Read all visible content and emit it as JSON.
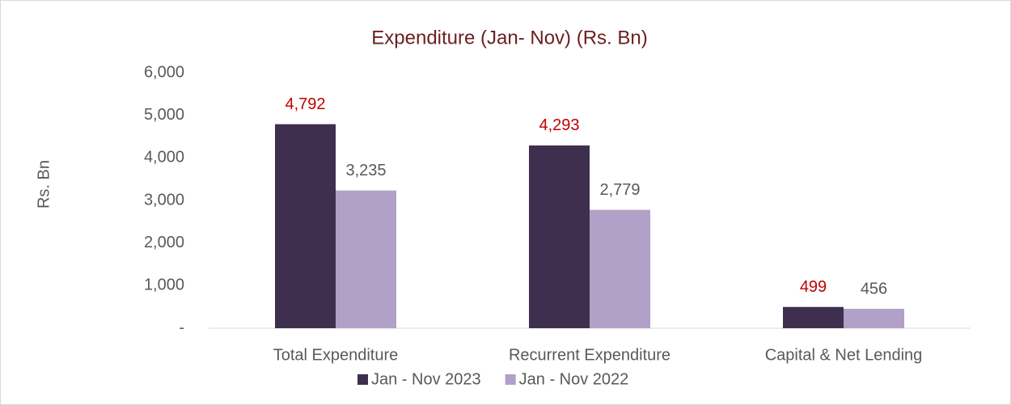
{
  "chart_data": {
    "type": "bar",
    "title": "Expenditure (Jan- Nov) (Rs. Bn)",
    "y_label": "Rs. Bn",
    "categories": [
      "Total Expenditure",
      "Recurrent Expenditure",
      "Capital & Net Lending"
    ],
    "series": [
      {
        "name": "Jan - Nov 2023",
        "color": "#3e2f4f",
        "label_color": "#c00000",
        "values": [
          4792,
          4293,
          499
        ],
        "value_labels": [
          "4,792",
          "4,293",
          "499"
        ]
      },
      {
        "name": "Jan - Nov 2022",
        "color": "#b1a0c7",
        "label_color": "#595959",
        "values": [
          3235,
          2779,
          456
        ],
        "value_labels": [
          "3,235",
          "2,779",
          "456"
        ]
      }
    ],
    "ylim": [
      0,
      6000
    ],
    "yticks": [
      {
        "value": 0,
        "label": "-"
      },
      {
        "value": 1000,
        "label": "1,000"
      },
      {
        "value": 2000,
        "label": "2,000"
      },
      {
        "value": 3000,
        "label": "3,000"
      },
      {
        "value": 4000,
        "label": "4,000"
      },
      {
        "value": 5000,
        "label": "5,000"
      },
      {
        "value": 6000,
        "label": "6,000"
      }
    ],
    "legend": "bottom",
    "grid": false
  }
}
